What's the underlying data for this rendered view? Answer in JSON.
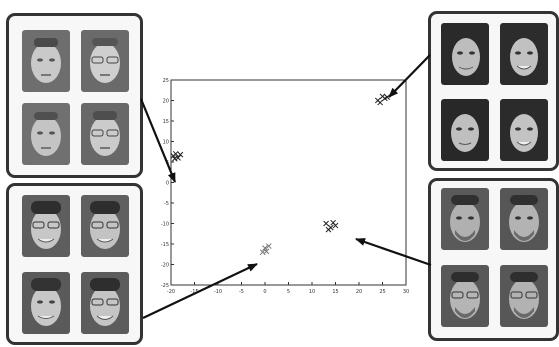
{
  "chart_data": {
    "type": "scatter",
    "xlim": [
      -20,
      30
    ],
    "ylim": [
      -25,
      25
    ],
    "x_ticks": [
      -20,
      -15,
      -10,
      -5,
      0,
      5,
      10,
      15,
      20,
      25,
      30
    ],
    "y_ticks": [
      -25,
      -20,
      -15,
      -10,
      -5,
      0,
      5,
      10,
      15,
      20,
      25
    ],
    "grid": false,
    "series": [
      {
        "points": [
          [
            -19.5,
            6.5
          ],
          [
            -18.5,
            6.0
          ],
          [
            -19.0,
            7.0
          ],
          [
            -18.0,
            6.8
          ],
          [
            -19.2,
            5.8
          ]
        ]
      },
      {
        "points": [
          [
            24.5,
            19.5
          ],
          [
            25.5,
            20.5
          ],
          [
            25.0,
            21.0
          ],
          [
            24.0,
            20.0
          ],
          [
            26.0,
            20.8
          ]
        ]
      },
      {
        "points": [
          [
            0.0,
            -16.0
          ],
          [
            -0.5,
            -17.0
          ],
          [
            0.8,
            -15.5
          ],
          [
            0.3,
            -16.8
          ]
        ]
      },
      {
        "points": [
          [
            13.0,
            -10.0
          ],
          [
            14.0,
            -11.0
          ],
          [
            15.0,
            -10.5
          ],
          [
            14.5,
            -9.8
          ],
          [
            13.5,
            -11.5
          ]
        ]
      }
    ]
  },
  "panels": [
    {
      "name": "panel-top-left-faces",
      "faces": [
        "face-1",
        "face-2",
        "face-3",
        "face-4"
      ]
    },
    {
      "name": "panel-bottom-left-faces",
      "faces": [
        "face-5",
        "face-6",
        "face-7",
        "face-8"
      ]
    },
    {
      "name": "panel-top-right-faces",
      "faces": [
        "face-9",
        "face-10",
        "face-11",
        "face-12"
      ]
    },
    {
      "name": "panel-bottom-right-faces",
      "faces": [
        "face-13",
        "face-14",
        "face-15",
        "face-16"
      ]
    }
  ]
}
